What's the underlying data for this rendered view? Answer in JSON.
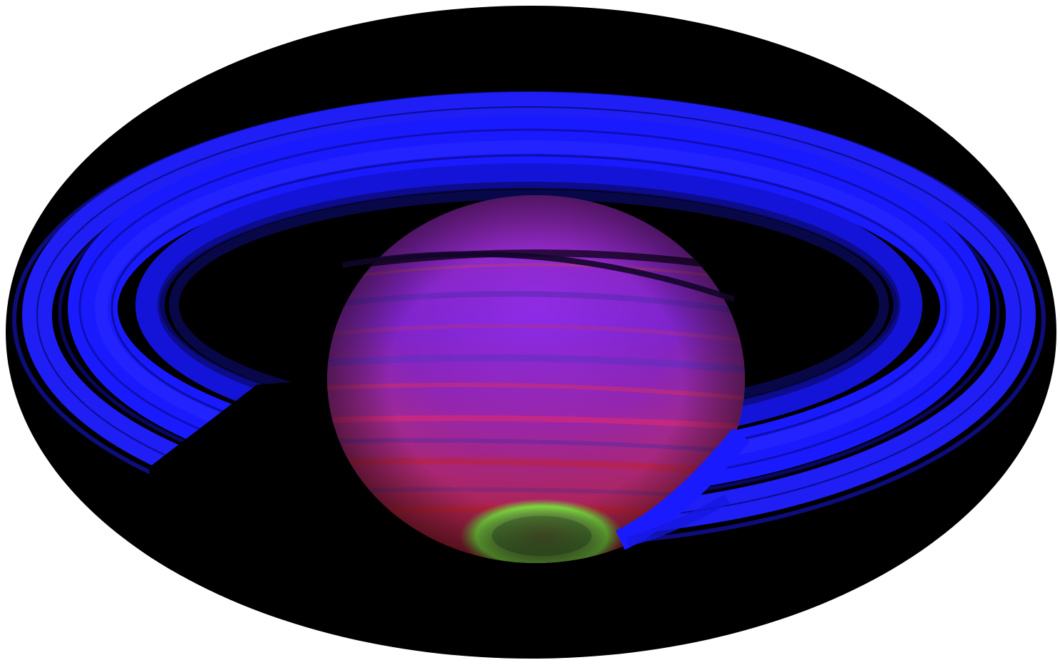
{
  "image": {
    "subject": "saturn-false-color-infrared",
    "frame_shape": "ellipse"
  },
  "colors": {
    "page_background": "#ffffff",
    "frame_fill": "#000000",
    "ring_blue": "#1a1aff",
    "ring_dark_blue": "#0d0d8c",
    "planet_purple": "#7a1fd6",
    "planet_magenta": "#c0206a",
    "aurora_green": "#5fd13a"
  }
}
